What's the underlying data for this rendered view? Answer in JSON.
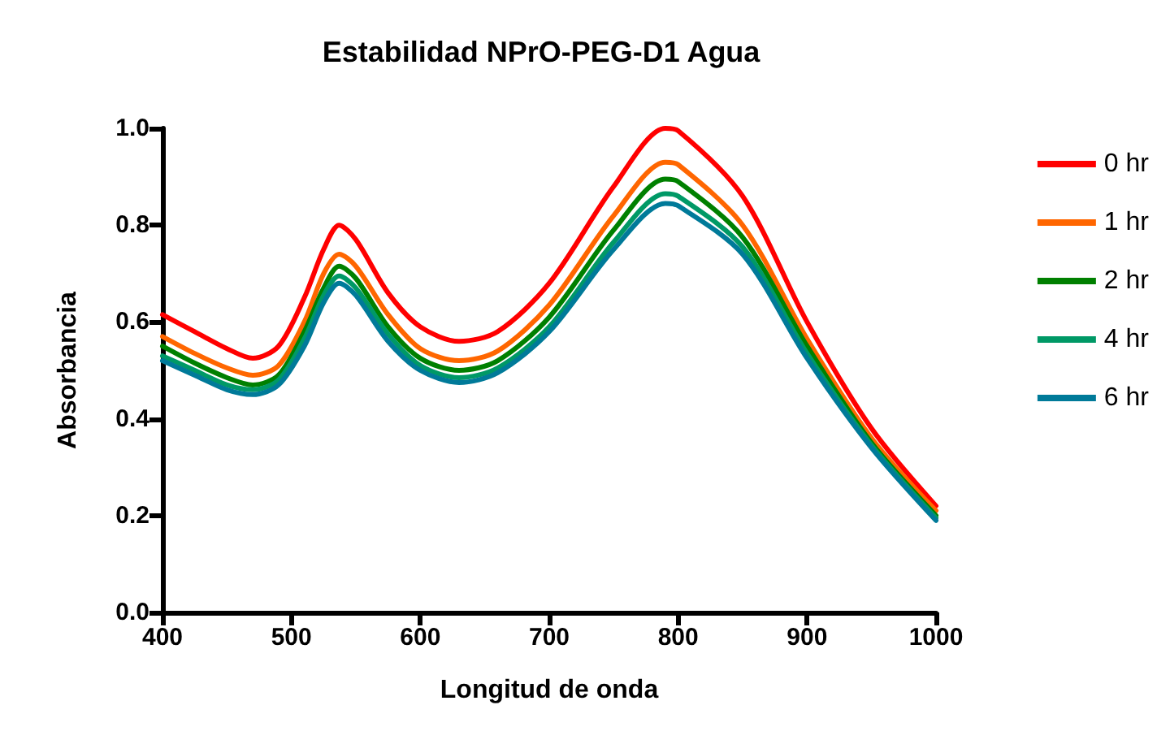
{
  "chart_data": {
    "type": "line",
    "title": "Estabilidad NPrO-PEG-D1 Agua",
    "xlabel": "Longitud de onda",
    "ylabel": "Absorbancia",
    "x": [
      400,
      425,
      450,
      470,
      490,
      510,
      525,
      537,
      550,
      575,
      600,
      630,
      660,
      700,
      750,
      790,
      800,
      850,
      900,
      950,
      1000
    ],
    "series": [
      {
        "name": "0 hr",
        "color": "#ff0000",
        "values": [
          0.615,
          0.58,
          0.545,
          0.525,
          0.55,
          0.65,
          0.75,
          0.8,
          0.77,
          0.66,
          0.59,
          0.56,
          0.58,
          0.68,
          0.88,
          1.0,
          0.995,
          0.86,
          0.6,
          0.38,
          0.22
        ]
      },
      {
        "name": "1 hr",
        "color": "#ff6600",
        "values": [
          0.57,
          0.535,
          0.505,
          0.49,
          0.51,
          0.6,
          0.7,
          0.74,
          0.715,
          0.615,
          0.545,
          0.52,
          0.54,
          0.635,
          0.82,
          0.93,
          0.925,
          0.8,
          0.565,
          0.36,
          0.21
        ]
      },
      {
        "name": "2 hr",
        "color": "#008000",
        "values": [
          0.55,
          0.515,
          0.485,
          0.47,
          0.49,
          0.58,
          0.67,
          0.715,
          0.69,
          0.59,
          0.525,
          0.5,
          0.52,
          0.61,
          0.79,
          0.895,
          0.89,
          0.775,
          0.55,
          0.35,
          0.2
        ]
      },
      {
        "name": "4 hr",
        "color": "#009966",
        "values": [
          0.53,
          0.5,
          0.47,
          0.46,
          0.48,
          0.565,
          0.655,
          0.695,
          0.67,
          0.575,
          0.51,
          0.485,
          0.505,
          0.59,
          0.765,
          0.865,
          0.86,
          0.755,
          0.535,
          0.345,
          0.195
        ]
      },
      {
        "name": "6 hr",
        "color": "#007a99",
        "values": [
          0.52,
          0.49,
          0.46,
          0.45,
          0.47,
          0.55,
          0.64,
          0.68,
          0.655,
          0.56,
          0.5,
          0.475,
          0.495,
          0.58,
          0.75,
          0.845,
          0.84,
          0.74,
          0.525,
          0.34,
          0.19
        ]
      }
    ],
    "xlim": [
      400,
      1000
    ],
    "xticks": [
      400,
      500,
      600,
      700,
      800,
      900,
      1000
    ],
    "ylim": [
      0,
      1
    ],
    "yticks": [
      {
        "value": 0,
        "label": "0.0"
      },
      {
        "value": 0.2,
        "label": "0.2"
      },
      {
        "value": 0.4,
        "label": "0.4"
      },
      {
        "value": 0.6,
        "label": "0.6"
      },
      {
        "value": 0.8,
        "label": "0.8"
      },
      {
        "value": 1,
        "label": "1.0"
      }
    ],
    "grid": false,
    "legend": "right",
    "marker": "none",
    "line_style": "solid"
  }
}
